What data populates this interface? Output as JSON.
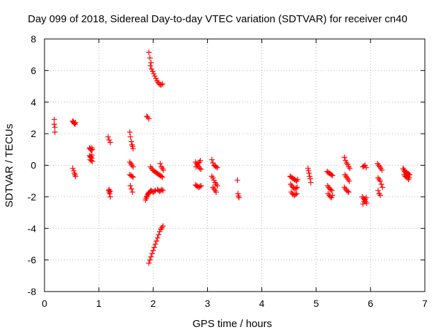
{
  "chart_data": {
    "type": "scatter",
    "title": "Day 099 of 2018, Sidereal Day-to-day VTEC variation (SDTVAR) for receiver cn40",
    "xlabel": "GPS time / hours",
    "ylabel": "SDTVAR / TECUs",
    "xlim": [
      0,
      7
    ],
    "ylim": [
      -8,
      8
    ],
    "xticks": [
      "0",
      "1",
      "2",
      "3",
      "4",
      "5",
      "6",
      "7"
    ],
    "yticks": [
      "-8",
      "-6",
      "-4",
      "-2",
      "0",
      "2",
      "4",
      "6",
      "8"
    ],
    "grid": true,
    "marker": "+",
    "series": [
      {
        "name": "SDTVAR",
        "color": "#ff0000",
        "x": [
          0.18,
          0.18,
          0.19,
          0.19,
          0.52,
          0.53,
          0.54,
          0.55,
          0.56,
          0.57,
          0.52,
          0.54,
          0.55,
          0.56,
          0.57,
          0.83,
          0.84,
          0.85,
          0.86,
          0.87,
          0.88,
          0.83,
          0.85,
          0.87,
          0.84,
          0.86,
          0.88,
          0.85,
          0.87,
          1.17,
          1.19,
          1.21,
          1.18,
          1.19,
          1.2,
          1.21,
          1.19,
          1.21,
          1.57,
          1.58,
          1.6,
          1.61,
          1.62,
          1.63,
          1.57,
          1.59,
          1.61,
          1.63,
          1.57,
          1.59,
          1.61,
          1.63,
          1.58,
          1.6,
          1.62,
          1.88,
          1.9,
          1.92,
          1.86,
          1.87,
          1.88,
          1.89,
          1.9,
          1.91,
          1.92,
          1.93,
          1.94,
          1.95,
          1.92,
          1.94,
          1.96,
          1.95,
          1.97,
          1.99,
          2.01,
          2.03,
          2.05,
          2.07,
          2.09,
          2.11,
          2.13,
          2.15,
          2.17,
          1.92,
          1.94,
          1.96,
          1.98,
          2.0,
          2.02,
          2.04,
          2.06,
          2.08,
          2.1,
          2.12,
          2.14,
          2.16,
          2.18,
          1.95,
          1.97,
          1.99,
          2.01,
          2.03,
          2.05,
          2.07,
          2.09,
          2.11,
          2.13,
          2.15,
          2.17,
          1.96,
          1.98,
          2.0,
          2.02,
          2.04,
          2.08,
          2.1,
          2.12,
          2.14,
          2.16,
          2.18,
          2.13,
          2.15,
          2.17,
          2.19,
          2.78,
          2.8,
          2.82,
          2.84,
          2.86,
          2.88,
          2.79,
          2.81,
          2.83,
          2.85,
          2.87,
          2.78,
          2.8,
          2.82,
          2.84,
          2.86,
          2.88,
          3.08,
          3.1,
          3.12,
          3.14,
          3.16,
          3.18,
          3.08,
          3.1,
          3.12,
          3.14,
          3.16,
          3.18,
          3.1,
          3.12,
          3.14,
          3.16,
          3.55,
          3.56,
          3.57,
          3.58,
          4.52,
          4.54,
          4.56,
          4.58,
          4.6,
          4.62,
          4.64,
          4.66,
          4.53,
          4.55,
          4.57,
          4.59,
          4.61,
          4.63,
          4.65,
          4.54,
          4.56,
          4.58,
          4.6,
          4.62,
          4.64,
          4.85,
          4.86,
          4.87,
          4.88,
          4.89,
          4.9,
          5.2,
          5.22,
          5.24,
          5.26,
          5.28,
          5.3,
          5.21,
          5.23,
          5.25,
          5.27,
          5.29,
          5.22,
          5.24,
          5.26,
          5.28,
          5.3,
          5.52,
          5.54,
          5.56,
          5.58,
          5.6,
          5.62,
          5.53,
          5.55,
          5.57,
          5.59,
          5.61,
          5.52,
          5.54,
          5.56,
          5.58,
          5.6,
          5.85,
          5.87,
          5.89,
          5.91,
          5.93,
          5.86,
          5.88,
          5.9,
          5.92,
          5.86,
          5.88,
          5.9,
          5.92,
          6.13,
          6.15,
          6.17,
          6.19,
          6.21,
          6.14,
          6.16,
          6.18,
          6.2,
          6.22,
          6.14,
          6.16,
          6.18,
          6.6,
          6.62,
          6.64,
          6.66,
          6.68,
          6.7,
          6.72,
          6.61,
          6.63,
          6.65,
          6.67,
          6.69,
          6.71,
          6.62,
          6.64,
          6.66,
          6.68,
          6.7
        ],
        "y": [
          2.9,
          2.6,
          2.4,
          2.1,
          2.8,
          2.75,
          2.7,
          2.65,
          2.6,
          2.7,
          -0.2,
          -0.35,
          -0.5,
          -0.6,
          -0.7,
          1.1,
          1.05,
          1.0,
          0.95,
          1.1,
          1.0,
          0.6,
          0.55,
          0.45,
          0.35,
          0.3,
          0.25,
          0.5,
          0.65,
          1.8,
          1.6,
          1.45,
          -1.6,
          -1.7,
          -1.8,
          -2.0,
          -1.55,
          -1.65,
          2.1,
          1.8,
          1.5,
          1.3,
          1.2,
          1.05,
          0.2,
          0.1,
          0.0,
          -0.1,
          -0.6,
          -0.65,
          -0.7,
          -0.75,
          -1.3,
          -1.5,
          -1.7,
          3.1,
          3.05,
          2.95,
          -2.2,
          -2.1,
          -2.0,
          -1.95,
          -1.85,
          -1.8,
          -1.75,
          -1.7,
          -1.7,
          -1.65,
          7.15,
          6.8,
          6.5,
          6.3,
          6.1,
          5.95,
          5.8,
          5.65,
          5.5,
          5.35,
          5.25,
          5.15,
          5.1,
          5.1,
          5.15,
          -6.2,
          -6.0,
          -5.8,
          -5.6,
          -5.4,
          -5.2,
          -5.0,
          -4.8,
          -4.6,
          -4.4,
          -4.2,
          -4.05,
          -3.95,
          -3.85,
          -0.1,
          -0.2,
          -0.3,
          -0.35,
          -0.4,
          -0.45,
          -0.5,
          -0.55,
          -0.6,
          -0.65,
          -0.7,
          -0.75,
          -1.6,
          -1.65,
          -1.7,
          -1.65,
          -1.6,
          -1.55,
          -1.6,
          -1.65,
          -1.6,
          -1.55,
          -1.6,
          0.1,
          -0.1,
          -0.2,
          -0.3,
          0.2,
          0.1,
          0.0,
          -0.1,
          -0.2,
          -0.25,
          -0.1,
          0.0,
          0.15,
          0.2,
          0.3,
          -1.25,
          -1.3,
          -1.35,
          -1.4,
          -1.35,
          -1.3,
          0.35,
          0.15,
          0.0,
          -0.05,
          -0.1,
          -0.15,
          -0.7,
          -0.8,
          -0.95,
          -1.1,
          -1.2,
          -1.3,
          -1.4,
          -1.5,
          -1.6,
          -1.7,
          -0.95,
          -1.8,
          -1.95,
          -2.05,
          -0.7,
          -0.75,
          -0.8,
          -0.85,
          -0.9,
          -0.95,
          -1.0,
          -0.9,
          -1.2,
          -1.3,
          -1.4,
          -1.45,
          -1.5,
          -1.45,
          -1.4,
          -1.7,
          -1.8,
          -1.85,
          -1.9,
          -1.85,
          -1.8,
          -0.2,
          -0.35,
          -0.5,
          -0.7,
          -0.85,
          -1.1,
          -0.4,
          -0.45,
          -0.5,
          -0.55,
          -0.6,
          -0.65,
          -1.3,
          -1.4,
          -1.5,
          -1.55,
          -1.6,
          -1.8,
          -1.9,
          -2.0,
          -2.05,
          -1.9,
          0.5,
          0.3,
          0.15,
          0.05,
          -0.1,
          -0.2,
          -0.6,
          -0.7,
          -0.8,
          -0.9,
          -1.0,
          -1.4,
          -1.5,
          -1.6,
          -1.65,
          -1.7,
          -2.0,
          -2.1,
          -2.2,
          -2.3,
          -2.4,
          -2.45,
          -2.3,
          -2.15,
          -2.05,
          -0.1,
          -0.05,
          0.0,
          -0.15,
          0.1,
          0.0,
          -0.1,
          -0.2,
          -0.3,
          -0.8,
          -0.9,
          -1.0,
          -1.2,
          -1.4,
          -1.6,
          -1.8,
          -1.9,
          -0.2,
          -0.3,
          -0.4,
          -0.45,
          -0.5,
          -0.55,
          -0.6,
          -0.3,
          -0.4,
          -0.5,
          -0.6,
          -0.7,
          -0.8,
          -0.6,
          -0.7,
          -0.75,
          -0.8,
          -0.9
        ]
      }
    ]
  }
}
